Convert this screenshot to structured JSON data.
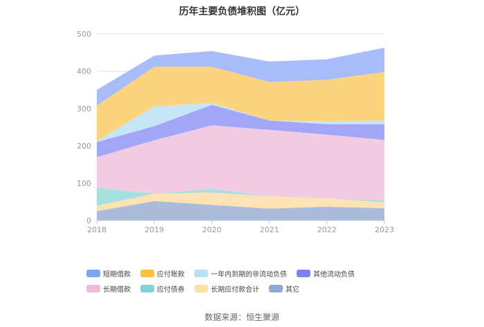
{
  "chart_data": {
    "type": "area",
    "stacked": true,
    "title": "历年主要负债堆积图（亿元）",
    "x": [
      "2018",
      "2019",
      "2020",
      "2021",
      "2022",
      "2023"
    ],
    "ylim": [
      0,
      500
    ],
    "yticks": [
      "0",
      "100",
      "200",
      "300",
      "400",
      "500"
    ],
    "grid": true,
    "legend_position": "bottom",
    "series": [
      {
        "name": "其它",
        "color": "#a9bcdc",
        "values": [
          25,
          52,
          42,
          32,
          37,
          33
        ]
      },
      {
        "name": "长期应付款合计",
        "color": "#fde2b3",
        "values": [
          15,
          20,
          33,
          33,
          23,
          16
        ]
      },
      {
        "name": "应付债券",
        "color": "#a6e0e0",
        "values": [
          48,
          0,
          10,
          0,
          0,
          5
        ]
      },
      {
        "name": "长期借款",
        "color": "#f0cbe2",
        "values": [
          82,
          143,
          170,
          178,
          170,
          162
        ]
      },
      {
        "name": "其他流动负债",
        "color": "#a3a6f7",
        "values": [
          40,
          38,
          55,
          25,
          28,
          42
        ]
      },
      {
        "name": "一年内到期的非流动负债",
        "color": "#c6e6f8",
        "values": [
          3,
          53,
          5,
          0,
          7,
          10
        ]
      },
      {
        "name": "应付账款",
        "color": "#fdd47e",
        "values": [
          95,
          106,
          97,
          103,
          112,
          130
        ]
      },
      {
        "name": "短期借款",
        "color": "#a8bcf9",
        "values": [
          42,
          30,
          42,
          55,
          55,
          65
        ]
      }
    ],
    "legend_order": [
      "短期借款",
      "应付账款",
      "一年内到期的非流动负债",
      "其他流动负债",
      "长期借款",
      "应付债券",
      "长期应付款合计",
      "其它"
    ]
  },
  "legend_colors": {
    "短期借款": "#7ea6f5",
    "应付账款": "#fcc23d",
    "一年内到期的非流动负债": "#b4e2f8",
    "其他流动负债": "#7b82f2",
    "长期借款": "#eebbdc",
    "应付债券": "#7fd3d6",
    "长期应付款合计": "#fde0a8",
    "其它": "#8fa9d8"
  },
  "source": "数据来源：恒生聚源"
}
